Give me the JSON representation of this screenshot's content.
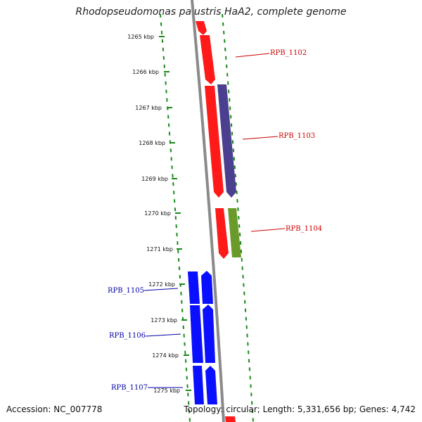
{
  "title": "Rhodopseudomonas palustris HaA2, complete genome",
  "footer": {
    "accession": "Accession: NC_007778",
    "summary": "Topology: circular; Length: 5,331,656 bp; Genes: 4,742"
  },
  "colors": {
    "backbone": "#8a8a8a",
    "dots": "#1a8a1a",
    "forward_label": "#cc0000",
    "reverse_label": "#0000aa",
    "gene_red": "#ff1a1a",
    "gene_purple": "#4b3f8f",
    "gene_olive": "#6a9a2a",
    "gene_blue": "#0a10ff"
  },
  "ticks": [
    {
      "label": "1265 kbp"
    },
    {
      "label": "1266 kbp"
    },
    {
      "label": "1267 kbp"
    },
    {
      "label": "1268 kbp"
    },
    {
      "label": "1269 kbp"
    },
    {
      "label": "1270 kbp"
    },
    {
      "label": "1271 kbp"
    },
    {
      "label": "1272 kbp"
    },
    {
      "label": "1273 kbp"
    },
    {
      "label": "1274 kbp"
    },
    {
      "label": "1275 kbp"
    }
  ],
  "gene_labels": [
    {
      "name": "RPB_1102",
      "strand": "forward"
    },
    {
      "name": "RPB_1103",
      "strand": "forward"
    },
    {
      "name": "RPB_1104",
      "strand": "forward"
    },
    {
      "name": "RPB_1105",
      "strand": "reverse"
    },
    {
      "name": "RPB_1106",
      "strand": "reverse"
    },
    {
      "name": "RPB_1107",
      "strand": "reverse"
    }
  ]
}
